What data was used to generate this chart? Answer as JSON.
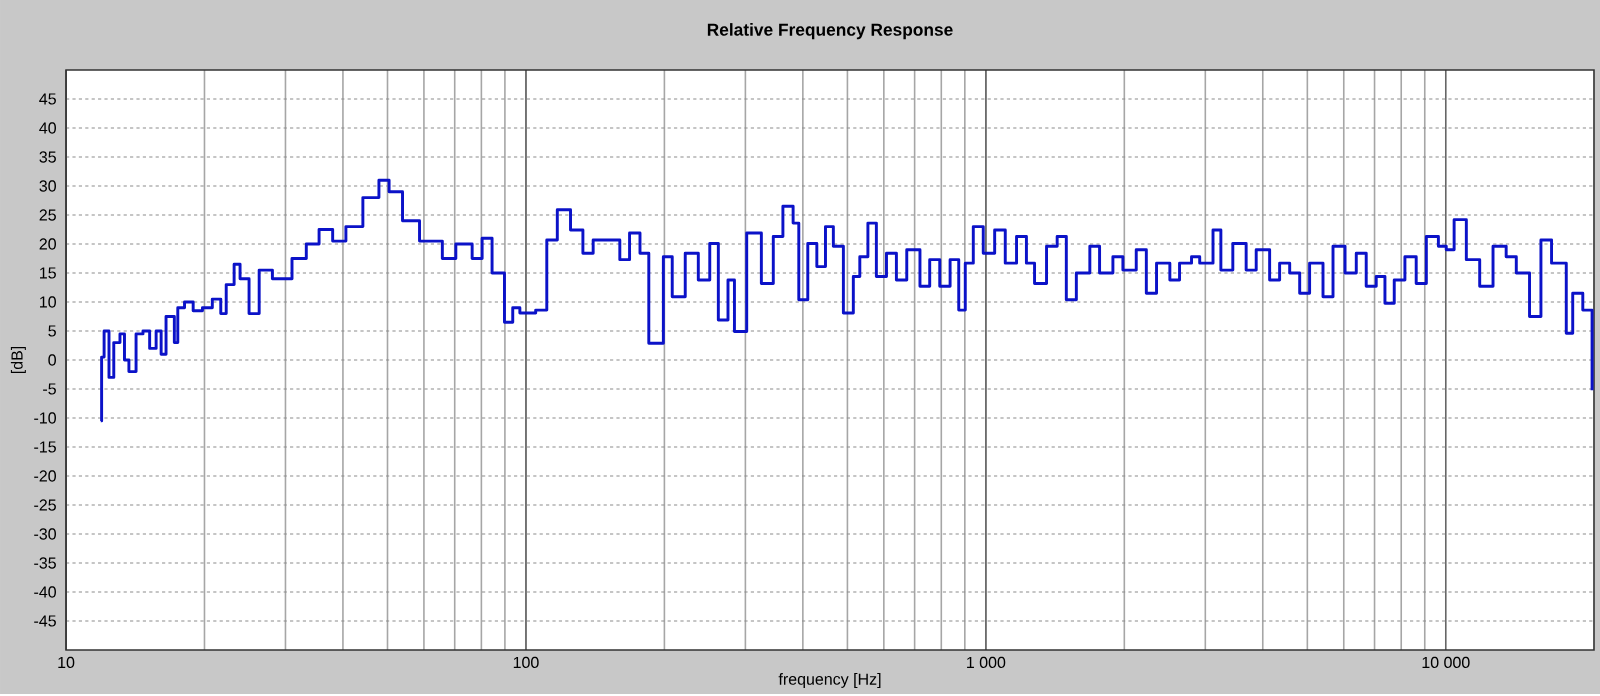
{
  "chart_data": {
    "type": "step",
    "title": "Relative Frequency Response",
    "xlabel": "frequency [Hz]",
    "ylabel": "[dB]",
    "log": "x",
    "grid": true,
    "xlim": [
      10,
      21000
    ],
    "ylim": [
      -50,
      50
    ],
    "xticks": [
      10,
      100,
      {
        "value": 1000,
        "label": "1 000"
      },
      {
        "value": 10000,
        "label": "10 000"
      }
    ],
    "yticks": [
      -45,
      -40,
      -35,
      -30,
      -25,
      -20,
      -15,
      -10,
      -5,
      0,
      5,
      10,
      15,
      20,
      25,
      30,
      35,
      40,
      45
    ],
    "color": "#0b12c8",
    "x": [
      11.9,
      11.95,
      12.1,
      12.4,
      12.7,
      13.1,
      13.4,
      13.7,
      14.2,
      14.7,
      15.2,
      15.7,
      16.1,
      16.5,
      17.2,
      17.5,
      18.1,
      18.9,
      19.8,
      20.8,
      21.7,
      22.3,
      23.2,
      23.9,
      25.0,
      26.3,
      28.1,
      31.0,
      33.3,
      35.5,
      38.0,
      40.6,
      44.2,
      47.9,
      50.4,
      53.9,
      58.7,
      65.8,
      70.4,
      76.4,
      80.3,
      84.4,
      89.8,
      93.6,
      97,
      105,
      111,
      117,
      125,
      133,
      140,
      150,
      160,
      168,
      177,
      185,
      199,
      208,
      222,
      237,
      251,
      262,
      275,
      284,
      302,
      325,
      345,
      362,
      381,
      392,
      410,
      429,
      448,
      466,
      490,
      515,
      532,
      554,
      578,
      608,
      639,
      673,
      719,
      755,
      794,
      836,
      873,
      902,
      939,
      987,
      1045,
      1102,
      1166,
      1225,
      1276,
      1355,
      1429,
      1496,
      1573,
      1683,
      1767,
      1889,
      1986,
      2123,
      2233,
      2350,
      2512,
      2637,
      2800,
      2917,
      3118,
      3243,
      3443,
      3681,
      3871,
      4140,
      4352,
      4577,
      4812,
      5057,
      5408,
      5686,
      6039,
      6388,
      6714,
      7059,
      7375,
      7727,
      8149,
      8623,
      9072,
      9636,
      10023,
      10426,
      11083,
      11850,
      12668,
      13530,
      14233,
      15209,
      16103,
      16982,
      18281,
      18880,
      19861,
      20800
    ],
    "values": [
      -10.5,
      0.5,
      5,
      -3,
      3,
      4.5,
      0,
      -2,
      4.5,
      5,
      2,
      5,
      1,
      7.5,
      3,
      9,
      10,
      8.5,
      9,
      10.5,
      8,
      13,
      16.5,
      14,
      8,
      15.5,
      14,
      17.5,
      20,
      22.5,
      20.5,
      23,
      28,
      31,
      29,
      24,
      20.5,
      17.5,
      20,
      17.5,
      21,
      15,
      6.5,
      9,
      8.1,
      8.6,
      20.7,
      25.9,
      22.4,
      18.4,
      20.7,
      20.7,
      17.3,
      21.9,
      18.4,
      2.9,
      17.8,
      10.9,
      18.4,
      13.8,
      20.1,
      6.9,
      13.8,
      4.9,
      21.9,
      13.2,
      21.3,
      26.5,
      23.6,
      10.4,
      20.1,
      16.1,
      23.0,
      19.6,
      8.1,
      14.4,
      17.8,
      23.6,
      14.4,
      18.4,
      13.8,
      19.0,
      12.7,
      17.3,
      12.7,
      17.3,
      8.6,
      16.7,
      23.0,
      18.4,
      22.4,
      16.7,
      21.3,
      16.7,
      13.2,
      19.6,
      21.3,
      10.4,
      15.0,
      19.6,
      15.0,
      17.8,
      15.5,
      19.0,
      11.5,
      16.7,
      13.8,
      16.7,
      17.8,
      16.7,
      22.4,
      15.5,
      20.1,
      15.5,
      19.0,
      13.8,
      16.7,
      15.0,
      11.5,
      16.7,
      10.9,
      19.6,
      15.0,
      18.4,
      12.7,
      14.4,
      9.8,
      13.8,
      17.8,
      13.2,
      21.3,
      19.6,
      19.0,
      24.2,
      17.3,
      12.7,
      19.6,
      17.8,
      15.0,
      7.5,
      20.7,
      16.7,
      4.6,
      11.5,
      8.6,
      -5.2
    ]
  }
}
